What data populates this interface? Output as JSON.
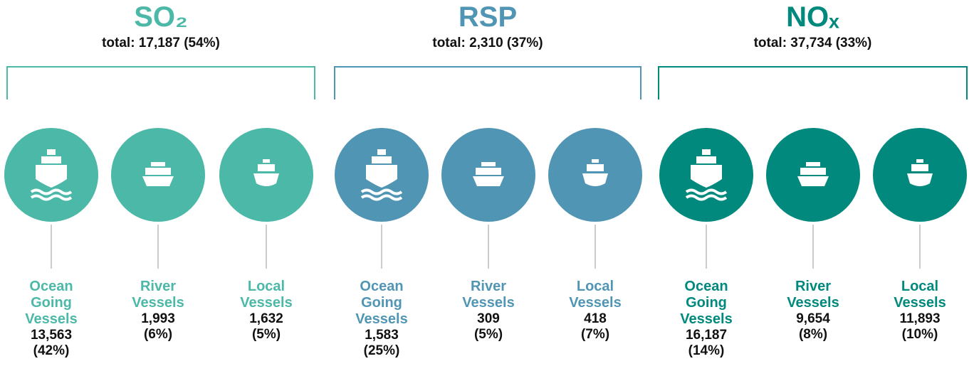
{
  "groups": [
    {
      "title": "SO₂",
      "total": "total: 17,187 (54%)",
      "color": "#4cb8a7",
      "items": [
        {
          "label": "Ocean Going Vessels",
          "value": "13,563",
          "percent": "(42%)"
        },
        {
          "label": "River Vessels",
          "value": "1,993",
          "percent": "(6%)"
        },
        {
          "label": "Local Vessels",
          "value": "1,632",
          "percent": "(5%)"
        }
      ]
    },
    {
      "title": "RSP",
      "total": "total: 2,310 (37%)",
      "color": "#5096b4",
      "items": [
        {
          "label": "Ocean Going Vessels",
          "value": "1,583",
          "percent": "(25%)"
        },
        {
          "label": "River Vessels",
          "value": "309",
          "percent": "(5%)"
        },
        {
          "label": "Local Vessels",
          "value": "418",
          "percent": "(7%)"
        }
      ]
    },
    {
      "title": "NOₓ",
      "total": "total: 37,734 (33%)",
      "color": "#00897c",
      "items": [
        {
          "label": "Ocean Going Vessels",
          "value": "16,187",
          "percent": "(14%)"
        },
        {
          "label": "River Vessels",
          "value": "9,654",
          "percent": "(8%)"
        },
        {
          "label": "Local Vessels",
          "value": "11,893",
          "percent": "(10%)"
        }
      ]
    }
  ]
}
